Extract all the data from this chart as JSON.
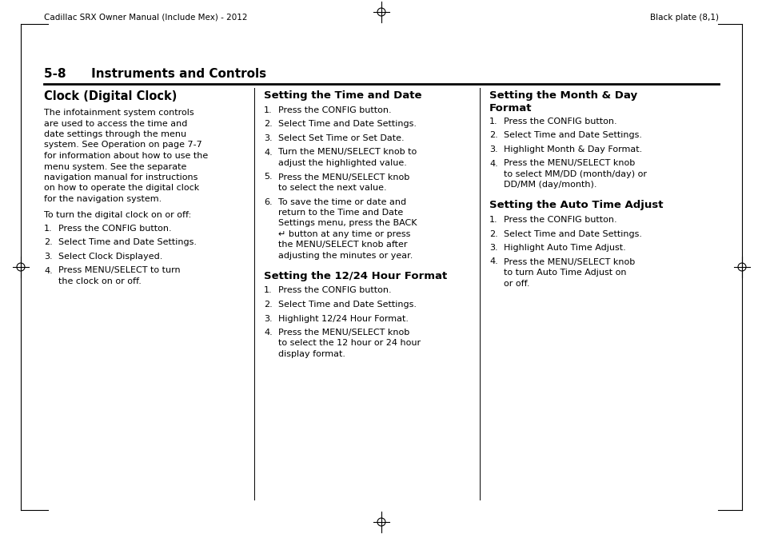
{
  "bg_color": "#ffffff",
  "header_left": "Cadillac SRX Owner Manual (Include Mex) - 2012",
  "header_right": "Black plate (8,1)",
  "section_title": "5-8      Instruments and Controls",
  "col1_title": "Clock (Digital Clock)",
  "col1_intro_lines": [
    "The infotainment system controls",
    "are used to access the time and",
    "date settings through the menu",
    "system. See Operation on page 7-7",
    "for information about how to use the",
    "menu system. See the separate",
    "navigation manual for instructions",
    "on how to operate the digital clock",
    "for the navigation system."
  ],
  "col1_turn": "To turn the digital clock on or off:",
  "col1_steps": [
    "Press the CONFIG button.",
    "Select Time and Date Settings.",
    "Select Clock Displayed.",
    "Press MENU/SELECT to turn\n    the clock on or off."
  ],
  "col2_title": "Setting the Time and Date",
  "col2_steps": [
    "Press the CONFIG button.",
    "Select Time and Date Settings.",
    "Select Set Time or Set Date.",
    "Turn the MENU/SELECT knob to\n    adjust the highlighted value.",
    "Press the MENU/SELECT knob\n    to select the next value.",
    "To save the time or date and\n    return to the Time and Date\n    Settings menu, press the BACK\n    ↵ button at any time or press\n    the MENU/SELECT knob after\n    adjusting the minutes or year."
  ],
  "col2_title2": "Setting the 12/24 Hour Format",
  "col2_steps2": [
    "Press the CONFIG button.",
    "Select Time and Date Settings.",
    "Highlight 12/24 Hour Format.",
    "Press the MENU/SELECT knob\n    to select the 12 hour or 24 hour\n    display format."
  ],
  "col3_title_line1": "Setting the Month & Day",
  "col3_title_line2": "Format",
  "col3_steps": [
    "Press the CONFIG button.",
    "Select Time and Date Settings.",
    "Highlight Month & Day Format.",
    "Press the MENU/SELECT knob\n    to select MM/DD (month/day) or\n    DD/MM (day/month)."
  ],
  "col3_title2": "Setting the Auto Time Adjust",
  "col3_steps2": [
    "Press the CONFIG button.",
    "Select Time and Date Settings.",
    "Highlight Auto Time Adjust.",
    "Press the MENU/SELECT knob\n    to turn Auto Time Adjust on\n    or off."
  ]
}
